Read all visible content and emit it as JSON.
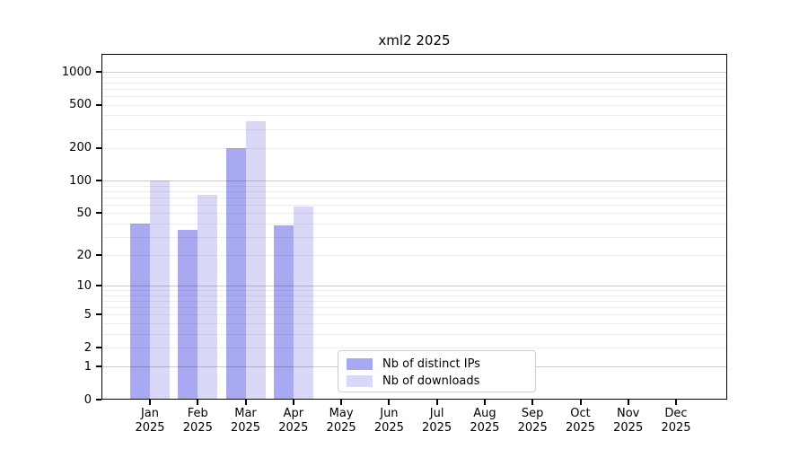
{
  "chart_data": {
    "type": "bar",
    "title": "xml2 2025",
    "year_label": "2025",
    "months": [
      "Jan",
      "Feb",
      "Mar",
      "Apr",
      "May",
      "Jun",
      "Jul",
      "Aug",
      "Sep",
      "Oct",
      "Nov",
      "Dec"
    ],
    "series": [
      {
        "name": "Nb of distinct IPs",
        "color": "#a9a9f1",
        "values": [
          40,
          35,
          200,
          38,
          0,
          0,
          0,
          0,
          0,
          0,
          0,
          0
        ]
      },
      {
        "name": "Nb of downloads",
        "color": "#d9d9f7",
        "values": [
          100,
          74,
          352,
          58,
          0,
          0,
          0,
          0,
          0,
          0,
          0,
          0
        ]
      }
    ],
    "yscale": "log10(1+y)",
    "ylim": [
      0,
      1460
    ],
    "ytick_labels": [
      0,
      1,
      2,
      5,
      10,
      20,
      50,
      100,
      200,
      500,
      1000
    ],
    "grid": "horizontal major+minor log gridlines drawn over bars",
    "legend": {
      "position": "inside bottom-center",
      "entries": [
        "Nb of distinct IPs",
        "Nb of downloads"
      ]
    },
    "xlabel": "",
    "ylabel": ""
  },
  "colors": {
    "background": "#ffffff",
    "axis": "#000000",
    "bar_distinct_ips": "#a9a9f1",
    "bar_downloads": "#d9d9f7",
    "grid_major": "#cccccc",
    "grid_minor": "#ededed"
  }
}
